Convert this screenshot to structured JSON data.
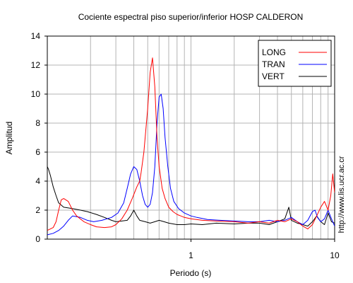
{
  "chart_data": {
    "type": "line",
    "title": "Cociente espectral piso superior/inferior  HOSP CALDERON",
    "xlabel": "Periodo (s)",
    "ylabel": "Amplitud",
    "side_note": "http://www.lis.ucr.ac.cr",
    "xscale": "log",
    "xlim": [
      0.1,
      10
    ],
    "ylim": [
      0,
      14
    ],
    "x_ticks": [
      1,
      10
    ],
    "x_tick_labels": [
      "1",
      "10"
    ],
    "y_ticks": [
      0,
      2,
      4,
      6,
      8,
      10,
      12,
      14
    ],
    "y_tick_labels": [
      "0",
      "2",
      "4",
      "6",
      "8",
      "10",
      "12",
      "14"
    ],
    "grid": true,
    "legend_position": "top-right",
    "series": [
      {
        "name": "LONG",
        "color": "#ff0000",
        "points": [
          [
            0.1,
            0.6
          ],
          [
            0.11,
            0.8
          ],
          [
            0.115,
            1.2
          ],
          [
            0.12,
            2.0
          ],
          [
            0.125,
            2.7
          ],
          [
            0.13,
            2.8
          ],
          [
            0.14,
            2.6
          ],
          [
            0.15,
            2.0
          ],
          [
            0.16,
            1.6
          ],
          [
            0.18,
            1.2
          ],
          [
            0.2,
            1.0
          ],
          [
            0.22,
            0.85
          ],
          [
            0.25,
            0.8
          ],
          [
            0.28,
            0.85
          ],
          [
            0.3,
            1.0
          ],
          [
            0.33,
            1.4
          ],
          [
            0.36,
            2.0
          ],
          [
            0.39,
            2.8
          ],
          [
            0.42,
            3.6
          ],
          [
            0.44,
            4.0
          ],
          [
            0.45,
            4.6
          ],
          [
            0.47,
            6.0
          ],
          [
            0.5,
            9.0
          ],
          [
            0.52,
            11.5
          ],
          [
            0.54,
            12.5
          ],
          [
            0.56,
            10.5
          ],
          [
            0.58,
            7.0
          ],
          [
            0.6,
            5.0
          ],
          [
            0.63,
            3.5
          ],
          [
            0.66,
            2.8
          ],
          [
            0.7,
            2.2
          ],
          [
            0.75,
            1.9
          ],
          [
            0.8,
            1.7
          ],
          [
            0.9,
            1.5
          ],
          [
            1.0,
            1.4
          ],
          [
            1.2,
            1.3
          ],
          [
            1.5,
            1.25
          ],
          [
            2.0,
            1.2
          ],
          [
            2.5,
            1.1
          ],
          [
            3.0,
            1.2
          ],
          [
            3.5,
            1.1
          ],
          [
            4.0,
            1.3
          ],
          [
            4.5,
            1.2
          ],
          [
            5.0,
            1.4
          ],
          [
            5.5,
            1.2
          ],
          [
            6.0,
            0.9
          ],
          [
            6.5,
            0.7
          ],
          [
            7.0,
            1.0
          ],
          [
            7.5,
            1.6
          ],
          [
            8.0,
            2.2
          ],
          [
            8.5,
            2.6
          ],
          [
            9.0,
            2.0
          ],
          [
            9.4,
            3.0
          ],
          [
            9.7,
            4.5
          ],
          [
            10.0,
            3.2
          ]
        ]
      },
      {
        "name": "TRAN",
        "color": "#0000ff",
        "points": [
          [
            0.1,
            0.3
          ],
          [
            0.11,
            0.4
          ],
          [
            0.12,
            0.6
          ],
          [
            0.13,
            0.9
          ],
          [
            0.14,
            1.3
          ],
          [
            0.15,
            1.6
          ],
          [
            0.17,
            1.5
          ],
          [
            0.19,
            1.3
          ],
          [
            0.21,
            1.2
          ],
          [
            0.24,
            1.3
          ],
          [
            0.28,
            1.5
          ],
          [
            0.31,
            1.8
          ],
          [
            0.34,
            2.5
          ],
          [
            0.36,
            3.5
          ],
          [
            0.38,
            4.5
          ],
          [
            0.4,
            5.0
          ],
          [
            0.42,
            4.8
          ],
          [
            0.44,
            4.0
          ],
          [
            0.46,
            3.0
          ],
          [
            0.48,
            2.4
          ],
          [
            0.5,
            2.2
          ],
          [
            0.52,
            2.4
          ],
          [
            0.54,
            3.2
          ],
          [
            0.56,
            5.0
          ],
          [
            0.58,
            8.0
          ],
          [
            0.6,
            9.8
          ],
          [
            0.62,
            10.0
          ],
          [
            0.64,
            9.0
          ],
          [
            0.66,
            7.0
          ],
          [
            0.69,
            5.0
          ],
          [
            0.72,
            3.5
          ],
          [
            0.76,
            2.6
          ],
          [
            0.82,
            2.1
          ],
          [
            0.9,
            1.8
          ],
          [
            1.0,
            1.6
          ],
          [
            1.1,
            1.5
          ],
          [
            1.3,
            1.35
          ],
          [
            1.6,
            1.3
          ],
          [
            2.0,
            1.25
          ],
          [
            2.5,
            1.2
          ],
          [
            3.0,
            1.2
          ],
          [
            3.5,
            1.3
          ],
          [
            4.0,
            1.2
          ],
          [
            4.5,
            1.3
          ],
          [
            5.0,
            1.5
          ],
          [
            5.5,
            1.2
          ],
          [
            6.0,
            1.0
          ],
          [
            6.5,
            1.3
          ],
          [
            7.0,
            1.9
          ],
          [
            7.3,
            2.0
          ],
          [
            7.6,
            1.5
          ],
          [
            8.0,
            1.2
          ],
          [
            8.5,
            1.4
          ],
          [
            9.0,
            2.0
          ],
          [
            9.5,
            1.4
          ],
          [
            10.0,
            0.9
          ]
        ]
      },
      {
        "name": "VERT",
        "color": "#000000",
        "points": [
          [
            0.1,
            5.0
          ],
          [
            0.102,
            4.8
          ],
          [
            0.105,
            4.4
          ],
          [
            0.11,
            3.6
          ],
          [
            0.115,
            3.0
          ],
          [
            0.12,
            2.5
          ],
          [
            0.13,
            2.2
          ],
          [
            0.14,
            2.15
          ],
          [
            0.15,
            2.1
          ],
          [
            0.17,
            2.0
          ],
          [
            0.19,
            1.9
          ],
          [
            0.22,
            1.7
          ],
          [
            0.25,
            1.5
          ],
          [
            0.28,
            1.3
          ],
          [
            0.3,
            1.2
          ],
          [
            0.33,
            1.25
          ],
          [
            0.36,
            1.3
          ],
          [
            0.38,
            1.6
          ],
          [
            0.4,
            2.0
          ],
          [
            0.42,
            1.6
          ],
          [
            0.44,
            1.3
          ],
          [
            0.48,
            1.2
          ],
          [
            0.52,
            1.1
          ],
          [
            0.56,
            1.2
          ],
          [
            0.6,
            1.3
          ],
          [
            0.65,
            1.2
          ],
          [
            0.7,
            1.1
          ],
          [
            0.8,
            1.0
          ],
          [
            0.9,
            1.0
          ],
          [
            1.0,
            1.05
          ],
          [
            1.2,
            1.0
          ],
          [
            1.5,
            1.1
          ],
          [
            2.0,
            1.05
          ],
          [
            2.5,
            1.1
          ],
          [
            3.0,
            1.1
          ],
          [
            3.5,
            1.0
          ],
          [
            4.0,
            1.2
          ],
          [
            4.5,
            1.4
          ],
          [
            4.8,
            2.2
          ],
          [
            5.0,
            1.3
          ],
          [
            5.5,
            1.1
          ],
          [
            6.0,
            1.0
          ],
          [
            6.5,
            0.9
          ],
          [
            7.0,
            1.2
          ],
          [
            7.5,
            1.6
          ],
          [
            8.0,
            1.2
          ],
          [
            8.5,
            1.0
          ],
          [
            9.0,
            1.8
          ],
          [
            9.5,
            1.2
          ],
          [
            10.0,
            1.1
          ]
        ]
      }
    ]
  }
}
